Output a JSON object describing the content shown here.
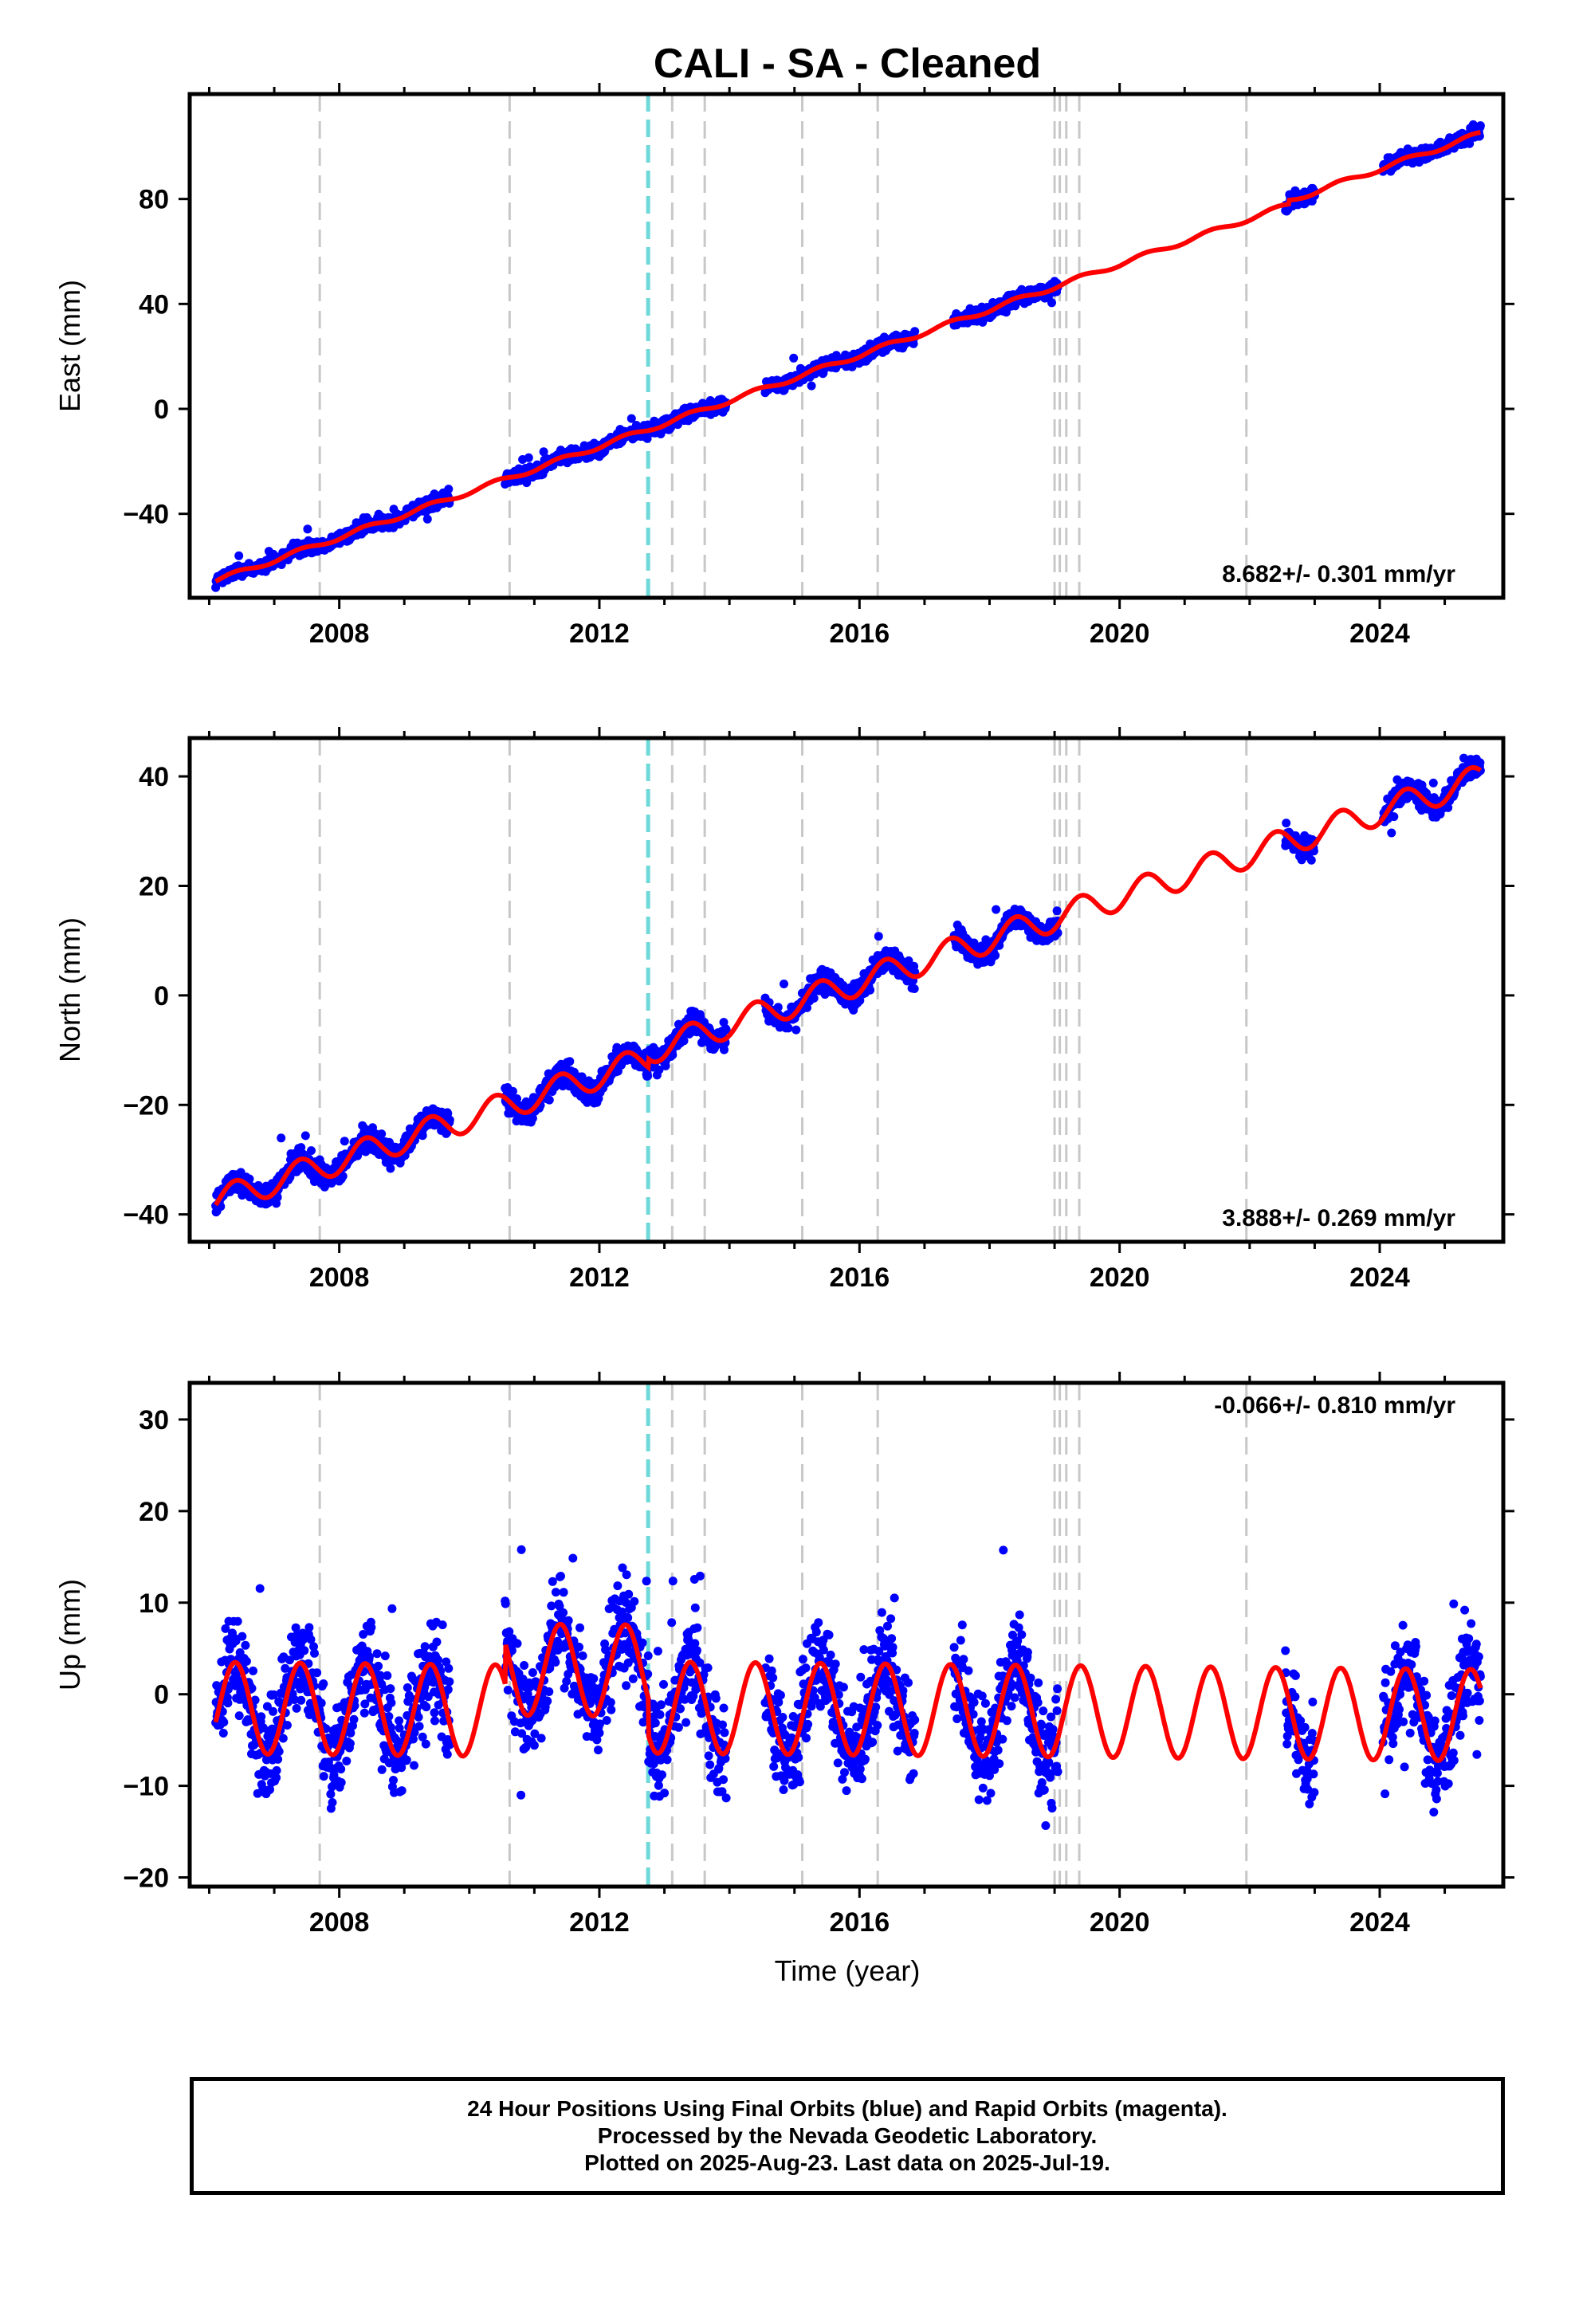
{
  "title": "CALI  - SA - Cleaned",
  "xlabel": "Time (year)",
  "caption": [
    "24 Hour Positions Using Final Orbits (blue) and Rapid Orbits (magenta).",
    "Processed by the Nevada Geodetic Laboratory.",
    "Plotted on 2025-Aug-23. Last data on 2025-Jul-19."
  ],
  "colors": {
    "data": "#0000ff",
    "model": "#ff0000",
    "equipment_change": "#c8c8c8",
    "earthquake": "#6fd8d8",
    "frame": "#000000"
  },
  "chart_data": [
    {
      "type": "scatter",
      "name": "east",
      "ylabel": "East (mm)",
      "xlim": [
        2005.7,
        2025.9
      ],
      "ylim": [
        -72,
        120
      ],
      "x_ticks": [
        2008,
        2012,
        2016,
        2020,
        2024
      ],
      "y_ticks": [
        -40,
        0,
        40,
        80
      ],
      "rate_text": "8.682+/- 0.301 mm/yr",
      "rate_position": "bottom-right",
      "model": {
        "t0": 2006.1,
        "y0": -65.5,
        "rate": 8.682,
        "annual_amplitude": 0.9,
        "steps": [
          {
            "x": 2012.75,
            "dy": 0
          },
          {
            "x": 2022.6,
            "dy": 1.5
          }
        ]
      },
      "data_segments": [
        [
          2006.1,
          2009.7
        ],
        [
          2010.55,
          2013.95
        ],
        [
          2014.55,
          2016.85
        ],
        [
          2017.45,
          2019.05
        ],
        [
          2022.55,
          2023.0
        ],
        [
          2024.05,
          2025.55
        ]
      ],
      "scatter": 2.2,
      "grid": false
    },
    {
      "type": "scatter",
      "name": "north",
      "ylabel": "North (mm)",
      "xlim": [
        2005.7,
        2025.9
      ],
      "ylim": [
        -45,
        47
      ],
      "x_ticks": [
        2008,
        2012,
        2016,
        2020,
        2024
      ],
      "y_ticks": [
        -40,
        -20,
        0,
        20,
        40
      ],
      "rate_text": "3.888+/- 0.269 mm/yr",
      "rate_position": "bottom-right",
      "model": {
        "t0": 2006.1,
        "y0": -37.5,
        "rate": 3.888,
        "annual_amplitude": 2.5,
        "steps": [
          {
            "x": 2012.75,
            "dy": 1.5
          }
        ]
      },
      "data_segments": [
        [
          2006.1,
          2009.7
        ],
        [
          2010.55,
          2013.95
        ],
        [
          2014.55,
          2016.85
        ],
        [
          2017.45,
          2019.05
        ],
        [
          2022.55,
          2023.0
        ],
        [
          2024.05,
          2025.55
        ]
      ],
      "scatter": 1.8,
      "grid": false
    },
    {
      "type": "scatter",
      "name": "up",
      "ylabel": "Up (mm)",
      "xlim": [
        2005.7,
        2025.9
      ],
      "ylim": [
        -21,
        34
      ],
      "x_ticks": [
        2008,
        2012,
        2016,
        2020,
        2024
      ],
      "y_ticks": [
        -20,
        -10,
        0,
        10,
        20,
        30
      ],
      "rate_text": "-0.066+/- 0.810 mm/yr",
      "rate_position": "top-right",
      "model": {
        "t0": 2006.1,
        "y0": -1.5,
        "rate": -0.066,
        "annual_amplitude": 5.0,
        "steps": [
          {
            "x": 2010.55,
            "dy": 4.5
          },
          {
            "x": 2012.75,
            "dy": -4.0
          }
        ]
      },
      "data_segments": [
        [
          2006.1,
          2009.7
        ],
        [
          2010.55,
          2013.95
        ],
        [
          2014.55,
          2016.85
        ],
        [
          2017.45,
          2019.05
        ],
        [
          2022.55,
          2023.0
        ],
        [
          2024.05,
          2025.55
        ]
      ],
      "scatter": 4.5,
      "grid": false
    }
  ],
  "equipment_changes": [
    2007.7,
    2010.62,
    2013.12,
    2013.62,
    2015.12,
    2016.28,
    2019.0,
    2019.08,
    2019.18,
    2019.38,
    2021.95
  ],
  "earthquakes": [
    2012.75
  ]
}
